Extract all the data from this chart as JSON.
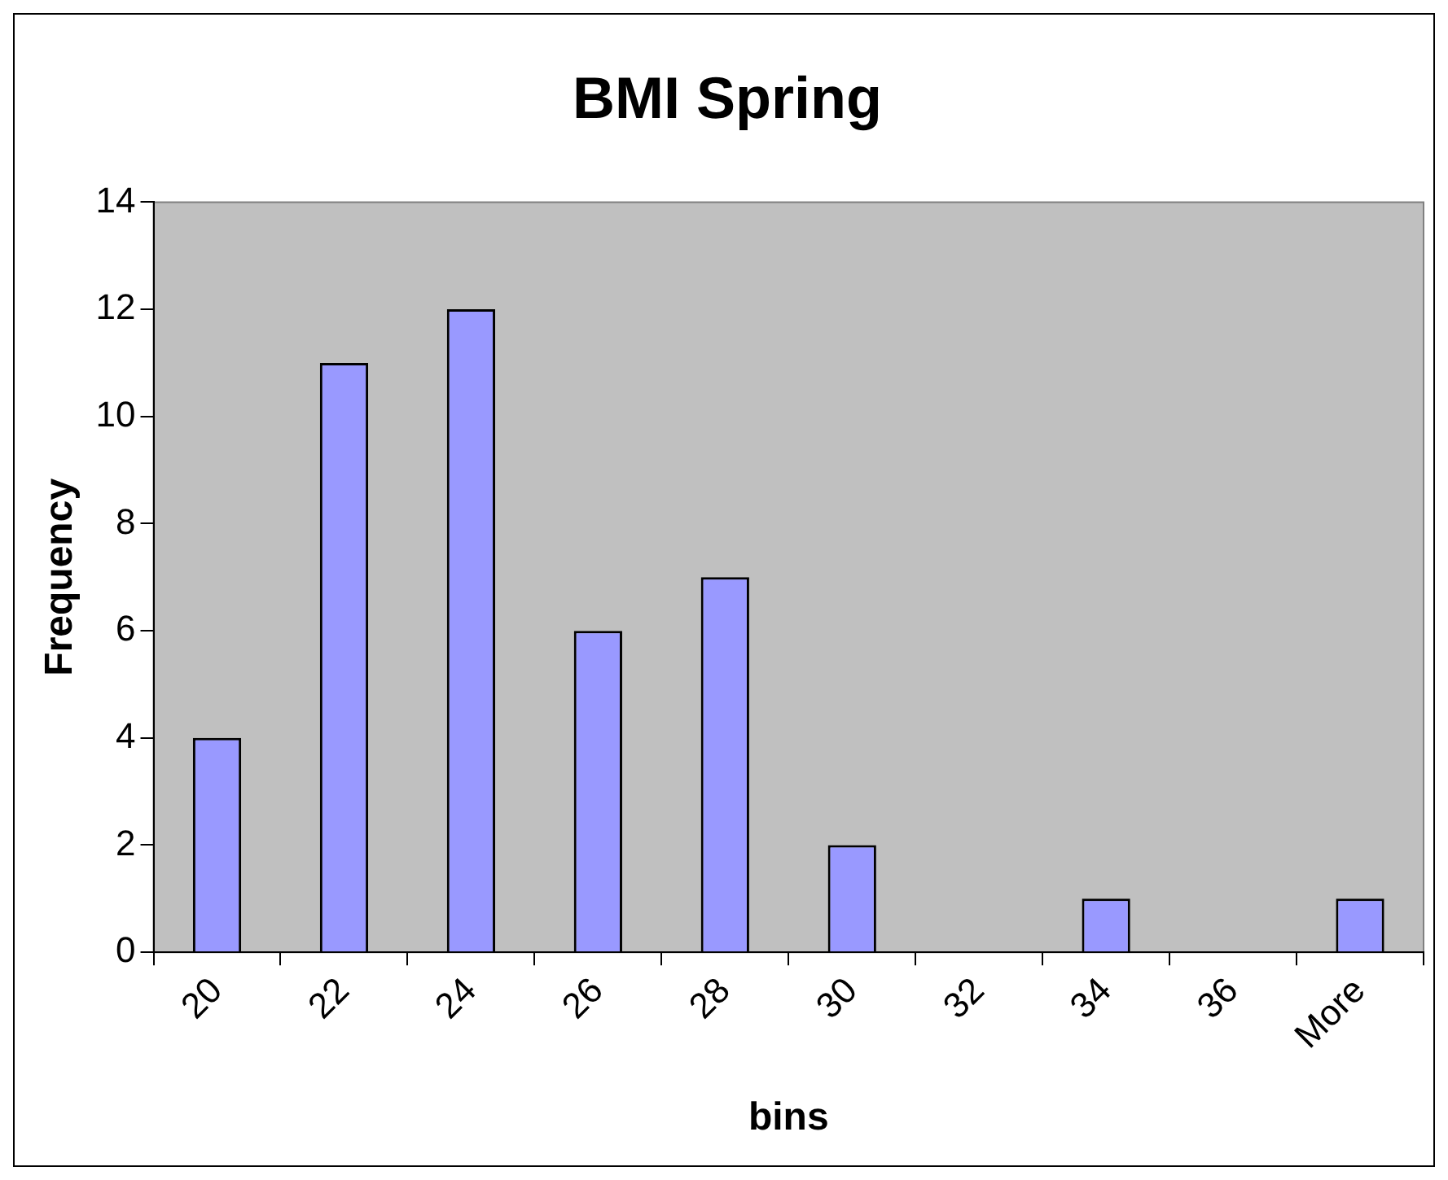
{
  "chart_data": {
    "type": "bar",
    "title": "BMI Spring",
    "xlabel": "bins",
    "ylabel": "Frequency",
    "categories": [
      "20",
      "22",
      "24",
      "26",
      "28",
      "30",
      "32",
      "34",
      "36",
      "More"
    ],
    "values": [
      4,
      11,
      12,
      6,
      7,
      2,
      0,
      1,
      0,
      1
    ],
    "color": "#9999ff",
    "ylim": [
      0,
      14
    ],
    "yticks": [
      0,
      2,
      4,
      6,
      8,
      10,
      12,
      14
    ],
    "grid": false,
    "legend": false
  }
}
